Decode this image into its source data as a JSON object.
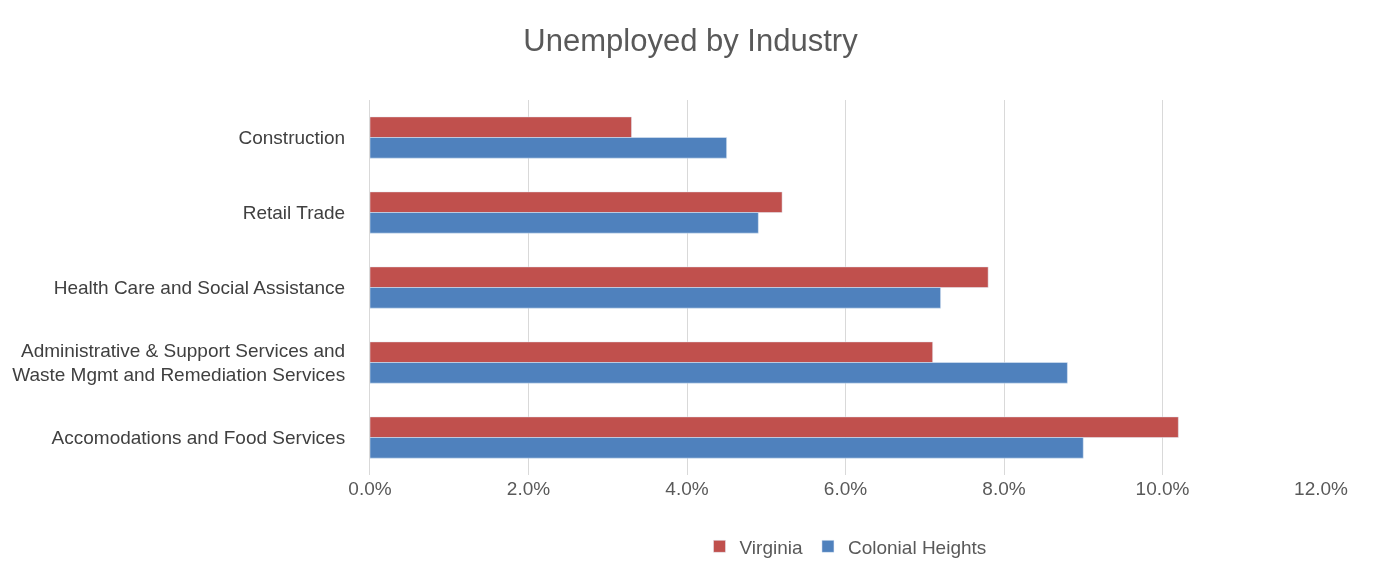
{
  "chart_data": {
    "type": "bar",
    "orientation": "horizontal",
    "title": "Unemployed by Industry",
    "categories": [
      "Construction",
      "Retail Trade",
      "Health Care and Social Assistance",
      "Administrative & Support Services and\nWaste Mgmt and Remediation Services",
      "Accomodations and Food Services"
    ],
    "series": [
      {
        "name": "Virginia",
        "color": "#c0504d",
        "values": [
          3.3,
          5.2,
          7.8,
          7.1,
          10.2
        ]
      },
      {
        "name": "Colonial Heights",
        "color": "#4f81bd",
        "values": [
          4.5,
          4.9,
          7.2,
          8.8,
          9.0
        ]
      }
    ],
    "xlim": [
      0,
      12
    ],
    "xticks": [
      {
        "value": 0,
        "label": "0.0%"
      },
      {
        "value": 2,
        "label": "2.0%"
      },
      {
        "value": 4,
        "label": "4.0%"
      },
      {
        "value": 6,
        "label": "6.0%"
      },
      {
        "value": 8,
        "label": "8.0%"
      },
      {
        "value": 10,
        "label": "10.0%"
      },
      {
        "value": 12,
        "label": "12.0%"
      }
    ],
    "grid": "x",
    "legend": "bottom"
  }
}
